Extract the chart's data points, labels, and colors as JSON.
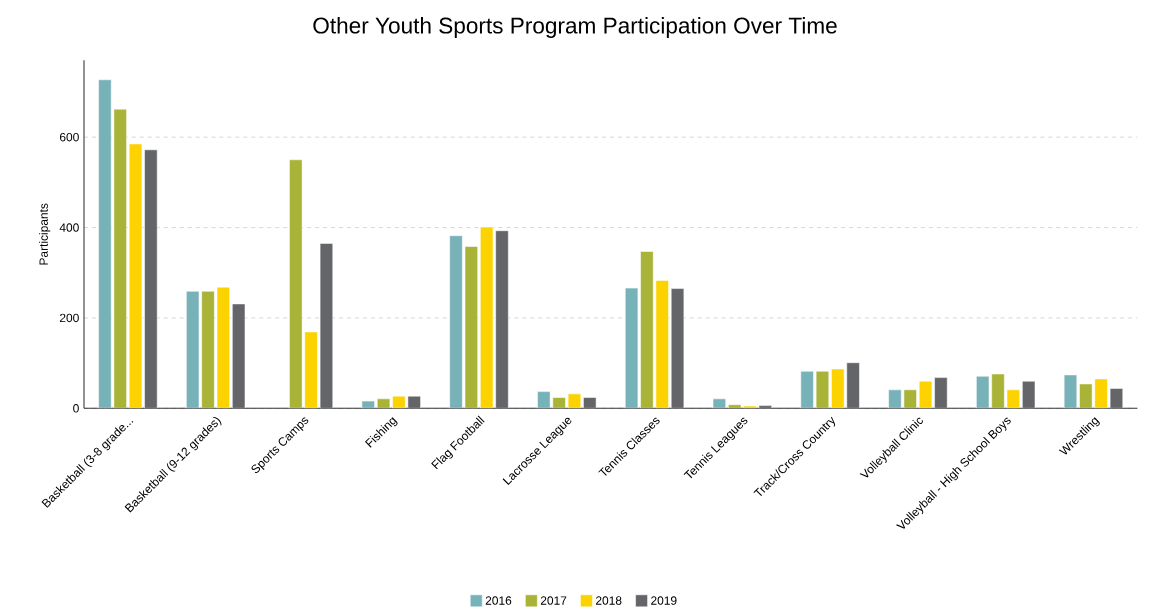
{
  "chart_data": {
    "type": "bar",
    "title": "Other Youth Sports Program Participation Over Time",
    "ylabel": "Participants",
    "categories": [
      "Basketball (3-8 grade...",
      "Basketball (9-12 grades)",
      "Sports Camps",
      "Fishing",
      "Flag Football",
      "Lacrosse League",
      "Tennis Classes",
      "Tennis Leagues",
      "Track/Cross Country",
      "Volleyball Clinic",
      "Volleyball - High School Boys",
      "Wrestling"
    ],
    "series": [
      {
        "name": "2016",
        "color": "#78b2b9",
        "values": [
          727,
          259,
          null,
          16,
          382,
          37,
          266,
          21,
          82,
          41,
          71,
          74
        ]
      },
      {
        "name": "2017",
        "color": "#a9b337",
        "values": [
          662,
          259,
          550,
          21,
          358,
          24,
          347,
          8,
          82,
          41,
          76,
          54
        ]
      },
      {
        "name": "2018",
        "color": "#fcd201",
        "values": [
          585,
          268,
          169,
          27,
          401,
          32,
          283,
          5,
          87,
          60,
          41,
          65
        ]
      },
      {
        "name": "2019",
        "color": "#636569",
        "values": [
          572,
          231,
          365,
          27,
          393,
          24,
          265,
          6,
          101,
          68,
          60,
          44
        ]
      }
    ],
    "ylim": [
      0,
      770
    ],
    "yticks": [
      0,
      200,
      400,
      600
    ],
    "grid": "y",
    "legend": "bottom"
  }
}
